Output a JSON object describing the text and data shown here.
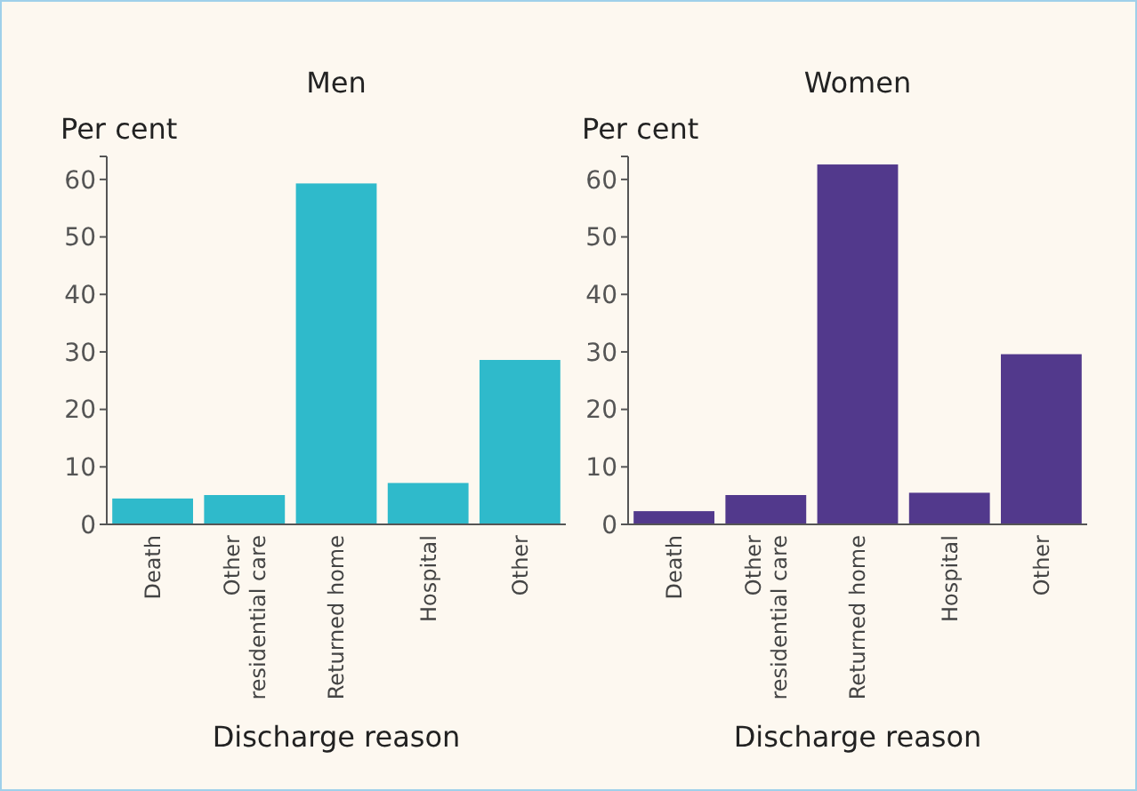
{
  "chart_data": [
    {
      "type": "bar",
      "title": "Men",
      "ylabel": "Per cent",
      "xlabel": "Discharge reason",
      "categories": [
        "Death",
        "Other\nresidential care",
        "Returned home",
        "Hospital",
        "Other"
      ],
      "values": [
        4.5,
        5.1,
        59.3,
        7.2,
        28.6
      ],
      "color": "#2fbacb",
      "ylim": [
        0,
        64
      ],
      "yticks": [
        0,
        10,
        20,
        30,
        40,
        50,
        60
      ],
      "grid": false
    },
    {
      "type": "bar",
      "title": "Women",
      "ylabel": "Per cent",
      "xlabel": "Discharge reason",
      "categories": [
        "Death",
        "Other\nresidential care",
        "Returned home",
        "Hospital",
        "Other"
      ],
      "values": [
        2.3,
        5.1,
        62.6,
        5.5,
        29.6
      ],
      "color": "#52398c",
      "ylim": [
        0,
        64
      ],
      "yticks": [
        0,
        10,
        20,
        30,
        40,
        50,
        60
      ],
      "grid": false
    }
  ]
}
